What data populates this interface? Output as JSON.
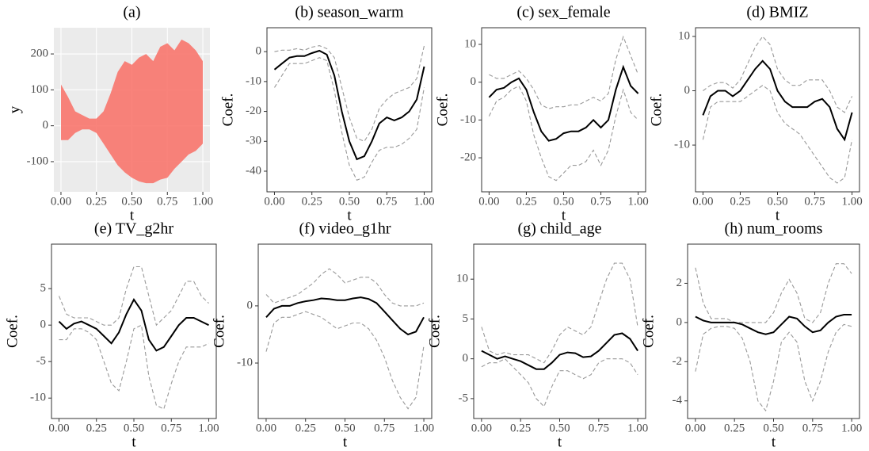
{
  "chart_data": [
    {
      "type": "band",
      "title": "(a)",
      "xlabel": "t",
      "ylabel": "y",
      "x": [
        0,
        0.05,
        0.1,
        0.15,
        0.2,
        0.25,
        0.3,
        0.35,
        0.4,
        0.45,
        0.5,
        0.55,
        0.6,
        0.65,
        0.7,
        0.75,
        0.8,
        0.85,
        0.9,
        0.95,
        1
      ],
      "values": [
        115,
        80,
        40,
        30,
        20,
        20,
        40,
        90,
        150,
        180,
        170,
        190,
        200,
        180,
        220,
        230,
        210,
        240,
        230,
        210,
        180
      ],
      "lower": [
        -40,
        -40,
        -20,
        -10,
        -10,
        -20,
        -50,
        -80,
        -110,
        -130,
        -145,
        -155,
        -160,
        -160,
        -150,
        -145,
        -120,
        -100,
        -80,
        -70,
        -50
      ],
      "color": "#f8766d",
      "grid": true,
      "background": "#ebebeb",
      "xlim": [
        -0.05,
        1.05
      ],
      "xticks": [
        {
          "value": 0,
          "label": "0.00"
        },
        {
          "value": 0.25,
          "label": "0.25"
        },
        {
          "value": 0.5,
          "label": "0.50"
        },
        {
          "value": 0.75,
          "label": "0.75"
        },
        {
          "value": 1,
          "label": "1.00"
        }
      ],
      "ylim": [
        -184,
        273
      ],
      "yticks": [
        -100,
        0,
        100,
        200
      ]
    },
    {
      "type": "line",
      "title": "(b) season_warm",
      "xlabel": "t",
      "ylabel": "Coef.",
      "x": [
        0,
        0.05,
        0.1,
        0.15,
        0.2,
        0.25,
        0.3,
        0.35,
        0.4,
        0.45,
        0.5,
        0.55,
        0.6,
        0.65,
        0.7,
        0.75,
        0.8,
        0.85,
        0.9,
        0.95,
        1
      ],
      "series": [
        {
          "color": "#999999",
          "style": "dashed",
          "values": [
            -12,
            -8,
            -4,
            -4,
            -4,
            -3,
            -2,
            -3,
            -13,
            -27,
            -38,
            -43,
            -42,
            -37,
            -33,
            -32,
            -32,
            -31,
            -29,
            -26,
            -12
          ]
        },
        {
          "color": "#999999",
          "style": "dashed",
          "values": [
            0,
            0.5,
            0.5,
            1,
            0.5,
            1.5,
            2,
            1,
            -2,
            -12,
            -22,
            -29,
            -30,
            -26,
            -19,
            -16,
            -14,
            -13,
            -12,
            -9,
            2
          ]
        },
        {
          "color": "#000000",
          "style": "solid",
          "values": [
            -6,
            -4,
            -2,
            -1.5,
            -1.5,
            -0.5,
            0.3,
            -1,
            -8,
            -20,
            -30,
            -36,
            -35,
            -30,
            -24,
            -22,
            -23,
            -22,
            -20,
            -16,
            -5
          ]
        }
      ],
      "xlim": [
        -0.05,
        1.05
      ],
      "xticks": [
        {
          "value": 0,
          "label": "0.00"
        },
        {
          "value": 0.25,
          "label": "0.25"
        },
        {
          "value": 0.5,
          "label": "0.50"
        },
        {
          "value": 0.75,
          "label": "0.75"
        },
        {
          "value": 1,
          "label": "1.00"
        }
      ],
      "ylim": [
        -46.9,
        8
      ],
      "yticks": [
        -40,
        -30,
        -20,
        -10,
        0
      ]
    },
    {
      "type": "line",
      "title": "(c) sex_female",
      "xlabel": "t",
      "ylabel": "Coef.",
      "x": [
        0,
        0.05,
        0.1,
        0.15,
        0.2,
        0.25,
        0.3,
        0.35,
        0.4,
        0.45,
        0.5,
        0.55,
        0.6,
        0.65,
        0.7,
        0.75,
        0.8,
        0.85,
        0.9,
        0.95,
        1
      ],
      "series": [
        {
          "color": "#999999",
          "style": "dashed",
          "values": [
            -9,
            -5,
            -4,
            -2,
            -1,
            -5,
            -14,
            -20,
            -25,
            -26,
            -24,
            -22,
            -22,
            -21,
            -18,
            -22,
            -18,
            -9,
            -2,
            -8,
            -10
          ]
        },
        {
          "color": "#999999",
          "style": "dashed",
          "values": [
            2,
            1,
            1,
            2,
            3,
            1,
            -2,
            -6,
            -7,
            -6.5,
            -6.5,
            -6,
            -6,
            -5,
            -4,
            -5,
            -3,
            6,
            12,
            7,
            2
          ]
        },
        {
          "color": "#000000",
          "style": "solid",
          "values": [
            -4,
            -2,
            -1.5,
            0,
            1,
            -2,
            -8,
            -13,
            -15.5,
            -15,
            -13.5,
            -13,
            -13,
            -12,
            -10,
            -12,
            -10,
            -2,
            4,
            -1,
            -3
          ]
        }
      ],
      "xlim": [
        -0.05,
        1.05
      ],
      "xticks": [
        {
          "value": 0,
          "label": "0.00"
        },
        {
          "value": 0.25,
          "label": "0.25"
        },
        {
          "value": 0.5,
          "label": "0.50"
        },
        {
          "value": 0.75,
          "label": "0.75"
        },
        {
          "value": 1,
          "label": "1.00"
        }
      ],
      "ylim": [
        -29,
        14.4
      ],
      "yticks": [
        -20,
        -10,
        0,
        10
      ]
    },
    {
      "type": "line",
      "title": "(d) BMIZ",
      "xlabel": "t",
      "ylabel": "Coef.",
      "x": [
        0,
        0.05,
        0.1,
        0.15,
        0.2,
        0.25,
        0.3,
        0.35,
        0.4,
        0.45,
        0.5,
        0.55,
        0.6,
        0.65,
        0.7,
        0.75,
        0.8,
        0.85,
        0.9,
        0.95,
        1
      ],
      "series": [
        {
          "color": "#999999",
          "style": "dashed",
          "values": [
            -9,
            -3,
            -2,
            -2,
            -2,
            -2,
            -1,
            0,
            1,
            0,
            -4,
            -6,
            -7,
            -8,
            -10,
            -12,
            -14,
            -16,
            -17,
            -16,
            -9
          ]
        },
        {
          "color": "#999999",
          "style": "dashed",
          "values": [
            0,
            1,
            1.5,
            1.5,
            0.5,
            2,
            5,
            8,
            10,
            8.5,
            4,
            2,
            1,
            1,
            2,
            2,
            2,
            0,
            -3,
            -4,
            -1
          ]
        },
        {
          "color": "#000000",
          "style": "solid",
          "values": [
            -4.5,
            -1,
            0,
            0,
            -1,
            0,
            2,
            4,
            5.5,
            4,
            0,
            -2,
            -3,
            -3,
            -3,
            -2,
            -1.5,
            -3,
            -7,
            -9,
            -4
          ]
        }
      ],
      "xlim": [
        -0.05,
        1.05
      ],
      "xticks": [
        {
          "value": 0,
          "label": "0.00"
        },
        {
          "value": 0.25,
          "label": "0.25"
        },
        {
          "value": 0.5,
          "label": "0.50"
        },
        {
          "value": 0.75,
          "label": "0.75"
        },
        {
          "value": 1,
          "label": "1.00"
        }
      ],
      "ylim": [
        -18.6,
        11.6
      ],
      "yticks": [
        -10,
        0,
        10
      ]
    },
    {
      "type": "line",
      "title": "(e) TV_g2hr",
      "xlabel": "t",
      "ylabel": "Coef.",
      "x": [
        0,
        0.05,
        0.1,
        0.15,
        0.2,
        0.25,
        0.3,
        0.35,
        0.4,
        0.45,
        0.5,
        0.55,
        0.6,
        0.65,
        0.7,
        0.75,
        0.8,
        0.85,
        0.9,
        0.95,
        1
      ],
      "series": [
        {
          "color": "#999999",
          "style": "dashed",
          "values": [
            -2,
            -2,
            -0.5,
            -0.5,
            -1,
            -2,
            -5,
            -8,
            -9,
            -5,
            -0.5,
            0,
            -7,
            -11,
            -11.5,
            -8,
            -5,
            -3,
            -3,
            -3,
            -2.5
          ]
        },
        {
          "color": "#999999",
          "style": "dashed",
          "values": [
            4,
            1.5,
            1,
            1,
            1,
            0.5,
            0,
            0,
            1,
            5,
            8,
            8,
            4,
            0,
            1,
            2,
            4,
            6,
            6,
            4,
            3
          ]
        },
        {
          "color": "#000000",
          "style": "solid",
          "values": [
            0.5,
            -0.5,
            0.2,
            0.5,
            0,
            -0.5,
            -1.5,
            -2.5,
            -1,
            1.5,
            3.5,
            2,
            -2,
            -3.5,
            -3,
            -1.5,
            0,
            1,
            1,
            0.5,
            0
          ]
        }
      ],
      "xlim": [
        -0.05,
        1.05
      ],
      "xticks": [
        {
          "value": 0,
          "label": "0.00"
        },
        {
          "value": 0.25,
          "label": "0.25"
        },
        {
          "value": 0.5,
          "label": "0.50"
        },
        {
          "value": 0.75,
          "label": "0.75"
        },
        {
          "value": 1,
          "label": "1.00"
        }
      ],
      "ylim": [
        -12.8,
        11.1
      ],
      "yticks": [
        -10,
        -5,
        0,
        5
      ]
    },
    {
      "type": "line",
      "title": "(f) video_g1hr",
      "xlabel": "t",
      "ylabel": "Coef.",
      "x": [
        0,
        0.05,
        0.1,
        0.15,
        0.2,
        0.25,
        0.3,
        0.35,
        0.4,
        0.45,
        0.5,
        0.55,
        0.6,
        0.65,
        0.7,
        0.75,
        0.8,
        0.85,
        0.9,
        0.95,
        1
      ],
      "series": [
        {
          "color": "#999999",
          "style": "dashed",
          "values": [
            -8,
            -3,
            -2,
            -2,
            -1.5,
            -1,
            -1.5,
            -2,
            -3,
            -4,
            -3.5,
            -3,
            -3,
            -4,
            -6,
            -9,
            -13,
            -16,
            -18,
            -16,
            -7
          ]
        },
        {
          "color": "#999999",
          "style": "dashed",
          "values": [
            2,
            0.5,
            1,
            1.5,
            2,
            3,
            4,
            5.5,
            6.5,
            5.5,
            4,
            4.5,
            5,
            5,
            4,
            2,
            0.5,
            0,
            0,
            0,
            0.5
          ]
        },
        {
          "color": "#000000",
          "style": "solid",
          "values": [
            -2,
            -0.5,
            0,
            0,
            0.5,
            0.8,
            1,
            1.3,
            1.2,
            1,
            1,
            1.3,
            1.5,
            1.2,
            0.5,
            -1,
            -2.5,
            -4,
            -5,
            -4.5,
            -2
          ]
        }
      ],
      "xlim": [
        -0.05,
        1.05
      ],
      "xticks": [
        {
          "value": 0,
          "label": "0.00"
        },
        {
          "value": 0.25,
          "label": "0.25"
        },
        {
          "value": 0.5,
          "label": "0.50"
        },
        {
          "value": 0.75,
          "label": "0.75"
        },
        {
          "value": 1,
          "label": "1.00"
        }
      ],
      "ylim": [
        -19.7,
        10.8
      ],
      "yticks": [
        -10,
        0
      ]
    },
    {
      "type": "line",
      "title": "(g) child_age",
      "xlabel": "t",
      "ylabel": "Coef.",
      "x": [
        0,
        0.05,
        0.1,
        0.15,
        0.2,
        0.25,
        0.3,
        0.35,
        0.4,
        0.45,
        0.5,
        0.55,
        0.6,
        0.65,
        0.7,
        0.75,
        0.8,
        0.85,
        0.9,
        0.95,
        1
      ],
      "series": [
        {
          "color": "#999999",
          "style": "dashed",
          "values": [
            -1,
            -0.5,
            -0.5,
            0,
            -1,
            -2,
            -3,
            -5,
            -6,
            -3.5,
            -1.5,
            -1.5,
            -2,
            -2.5,
            -2,
            -0.5,
            0,
            0,
            0,
            -0.5,
            -2
          ]
        },
        {
          "color": "#999999",
          "style": "dashed",
          "values": [
            4,
            1,
            0.5,
            0.8,
            0.5,
            0.5,
            0.5,
            0,
            -0.5,
            1,
            3,
            4,
            3.5,
            3,
            4,
            7,
            10,
            12,
            12,
            10,
            4
          ]
        },
        {
          "color": "#000000",
          "style": "solid",
          "values": [
            1,
            0.5,
            0,
            0.3,
            0,
            -0.3,
            -0.8,
            -1.3,
            -1.3,
            -0.5,
            0.5,
            0.8,
            0.7,
            0.2,
            0.3,
            1,
            2,
            3,
            3.2,
            2.5,
            1
          ]
        }
      ],
      "xlim": [
        -0.05,
        1.05
      ],
      "xticks": [
        {
          "value": 0,
          "label": "0.00"
        },
        {
          "value": 0.25,
          "label": "0.25"
        },
        {
          "value": 0.5,
          "label": "0.50"
        },
        {
          "value": 0.75,
          "label": "0.75"
        },
        {
          "value": 1,
          "label": "1.00"
        }
      ],
      "ylim": [
        -7.5,
        14.4
      ],
      "yticks": [
        -5,
        0,
        5,
        10
      ]
    },
    {
      "type": "line",
      "title": "(h) num_rooms",
      "xlabel": "t",
      "ylabel": "Coef.",
      "x": [
        0,
        0.05,
        0.1,
        0.15,
        0.2,
        0.25,
        0.3,
        0.35,
        0.4,
        0.45,
        0.5,
        0.55,
        0.6,
        0.65,
        0.7,
        0.75,
        0.8,
        0.85,
        0.9,
        0.95,
        1
      ],
      "series": [
        {
          "color": "#999999",
          "style": "dashed",
          "values": [
            -2.5,
            -0.6,
            -0.3,
            -0.2,
            -0.2,
            -0.3,
            -0.8,
            -2,
            -4,
            -4.5,
            -3,
            -1,
            -0.5,
            -1,
            -3,
            -4,
            -3,
            -1.5,
            -0.5,
            -0.1,
            -0.2
          ]
        },
        {
          "color": "#999999",
          "style": "dashed",
          "values": [
            2.8,
            1,
            0.2,
            0.2,
            0.2,
            0,
            0,
            0,
            0,
            0,
            0.5,
            1.5,
            2.2,
            1.5,
            0.2,
            0,
            0.5,
            2,
            3,
            3,
            2.5
          ]
        },
        {
          "color": "#000000",
          "style": "solid",
          "values": [
            0.3,
            0.1,
            0,
            0,
            0,
            0,
            -0.1,
            -0.3,
            -0.5,
            -0.6,
            -0.5,
            -0.1,
            0.3,
            0.2,
            -0.2,
            -0.5,
            -0.4,
            0,
            0.3,
            0.4,
            0.4
          ]
        }
      ],
      "xlim": [
        -0.05,
        1.05
      ],
      "xticks": [
        {
          "value": 0,
          "label": "0.00"
        },
        {
          "value": 0.25,
          "label": "0.25"
        },
        {
          "value": 0.5,
          "label": "0.50"
        },
        {
          "value": 0.75,
          "label": "0.75"
        },
        {
          "value": 1,
          "label": "1.00"
        }
      ],
      "ylim": [
        -4.9,
        4.0
      ],
      "yticks": [
        -4,
        -2,
        0,
        2
      ]
    }
  ]
}
